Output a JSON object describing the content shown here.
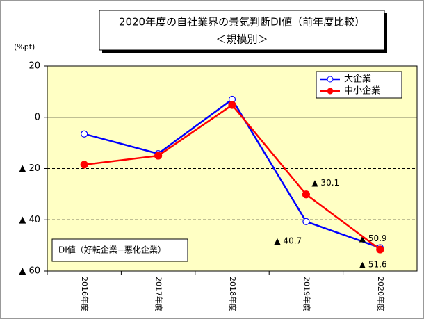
{
  "chart_data": {
    "type": "line",
    "title": "2020年度の自社業界の景気判断DI値（前年度比較）",
    "subtitle": "＜規模別＞",
    "y_label": "(%pt)",
    "annotation": "DI値（好転企業−悪化企業）",
    "categories": [
      "2016年度",
      "2017年度",
      "2018年度",
      "2019年度",
      "2020年度"
    ],
    "series": [
      {
        "name": "大企業",
        "color": "#0000ff",
        "marker": "open-circle",
        "values": [
          -6.5,
          -14.2,
          7,
          -40.7,
          -50.9
        ],
        "value_labels": [
          null,
          null,
          null,
          "▲ 40.7",
          "▲ 50.9"
        ]
      },
      {
        "name": "中小企業",
        "color": "#ff0000",
        "marker": "filled-circle",
        "values": [
          -18.5,
          -15,
          4.8,
          -30.1,
          -51.6
        ],
        "value_labels": [
          null,
          null,
          null,
          "▲ 30.1",
          "▲ 51.6"
        ]
      }
    ],
    "ylim": [
      -60,
      20
    ],
    "yticks": [
      {
        "value": -60,
        "label": "▲ 60"
      },
      {
        "value": -40,
        "label": "▲ 40"
      },
      {
        "value": -20,
        "label": "▲ 20"
      },
      0,
      20
    ],
    "grid": true,
    "legend": "top-right"
  }
}
